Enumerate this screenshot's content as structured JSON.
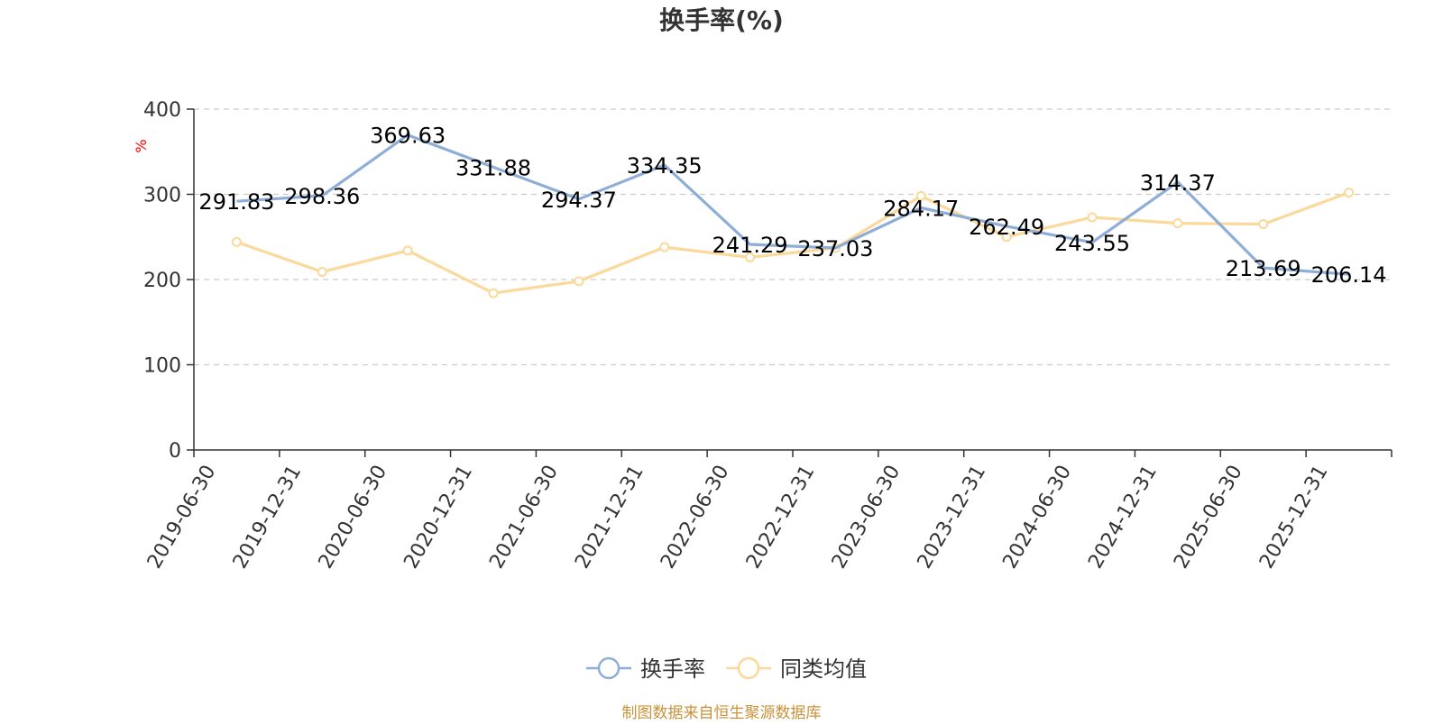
{
  "chart_data": {
    "type": "line",
    "title": "换手率(%)",
    "ylabel": "%",
    "xlabel": "",
    "ylim": [
      0,
      400
    ],
    "yticks": [
      0,
      100,
      200,
      300,
      400
    ],
    "grid": true,
    "legend_position": "bottom",
    "categories": [
      "2019-06-30",
      "2019-12-31",
      "2020-06-30",
      "2020-12-31",
      "2021-06-30",
      "2021-12-31",
      "2022-06-30",
      "2022-12-31",
      "2023-06-30",
      "2023-12-31",
      "2024-06-30",
      "2024-12-31",
      "2025-06-30",
      "2025-12-31"
    ],
    "series": [
      {
        "name": "换手率",
        "color": "#8eaed8",
        "values": [
          291.83,
          298.36,
          369.63,
          331.88,
          294.37,
          334.35,
          241.29,
          237.03,
          284.17,
          262.49,
          243.55,
          314.37,
          213.69,
          206.14
        ],
        "data_labels": [
          "291.83",
          "298.36",
          "369.63",
          "331.88",
          "294.37",
          "334.35",
          "241.29",
          "237.03",
          "284.17",
          "262.49",
          "243.55",
          "314.37",
          "213.69",
          "206.14"
        ]
      },
      {
        "name": "同类均值",
        "color": "#fbd99b",
        "values": [
          244,
          209,
          234,
          184,
          198,
          238,
          226,
          237,
          298,
          250,
          273,
          266,
          265,
          302
        ]
      }
    ],
    "source_note": "制图数据来自恒生聚源数据库",
    "source_color": "#c9923a",
    "axis_color": "#333333",
    "grid_color": "#cccccc",
    "label_color": "#000000",
    "ylabel_color": "#ff0000"
  }
}
